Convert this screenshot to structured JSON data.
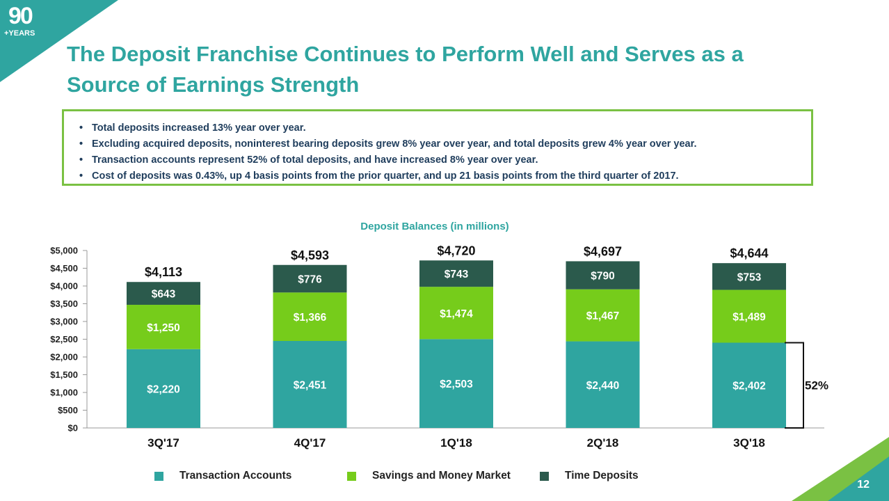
{
  "logo": {
    "number": "90",
    "text": "+YEARS"
  },
  "title": "The Deposit Franchise Continues to Perform Well and Serves as a Source of Earnings Strength",
  "bullets": [
    "Total deposits increased 13% year over year.",
    "Excluding acquired deposits, noninterest bearing deposits grew 8% year over year, and total deposits grew 4% year over year.",
    "Transaction accounts represent 52% of total deposits, and have increased 8% year over year.",
    "Cost of deposits was 0.43%, up 4 basis points from the prior quarter, and up 21 basis points from the third quarter of 2017."
  ],
  "page_number": "12",
  "colors": {
    "teal": "#2fa5a0",
    "green": "#76cc1b",
    "dark_green": "#2b5a4c",
    "border_green": "#7ac143"
  },
  "chart_data": {
    "type": "bar",
    "stacked": true,
    "title": "Deposit Balances (in millions)",
    "categories": [
      "3Q'17",
      "4Q'17",
      "1Q'18",
      "2Q'18",
      "3Q'18"
    ],
    "series": [
      {
        "name": "Transaction Accounts",
        "values": [
          2220,
          2451,
          2503,
          2440,
          2402
        ],
        "labels": [
          "$2,220",
          "$2,451",
          "$2,503",
          "$2,440",
          "$2,402"
        ],
        "color": "#2fa5a0"
      },
      {
        "name": "Savings and Money Market",
        "values": [
          1250,
          1366,
          1474,
          1467,
          1489
        ],
        "labels": [
          "$1,250",
          "$1,366",
          "$1,474",
          "$1,467",
          "$1,489"
        ],
        "color": "#76cc1b"
      },
      {
        "name": "Time Deposits",
        "values": [
          643,
          776,
          743,
          790,
          753
        ],
        "labels": [
          "$643",
          "$776",
          "$743",
          "$790",
          "$753"
        ],
        "color": "#2b5a4c"
      }
    ],
    "totals": [
      "$4,113",
      "$4,593",
      "$4,720",
      "$4,697",
      "$4,644"
    ],
    "yticks": [
      0,
      500,
      1000,
      1500,
      2000,
      2500,
      3000,
      3500,
      4000,
      4500,
      5000
    ],
    "ytick_labels": [
      "$0",
      "$500",
      "$1,000",
      "$1,500",
      "$2,000",
      "$2,500",
      "$3,000",
      "$3,500",
      "$4,000",
      "$4,500",
      "$5,000"
    ],
    "ylim": [
      0,
      5000
    ],
    "annotation": "52%",
    "legend_position": "bottom"
  }
}
